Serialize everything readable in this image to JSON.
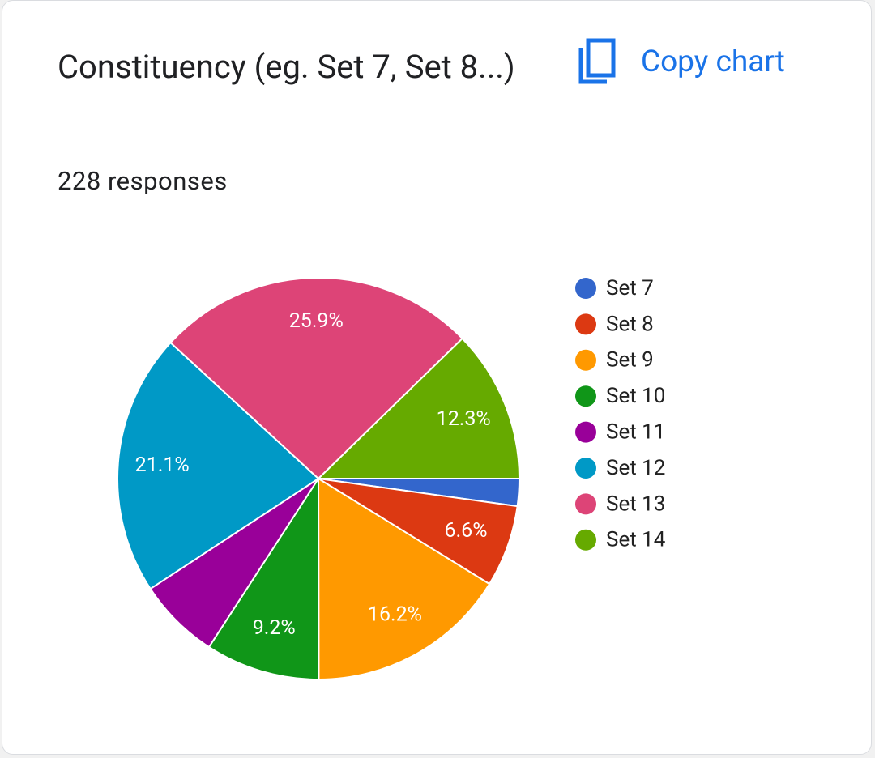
{
  "actions": {
    "copy": "Copy chart"
  },
  "chart_data": {
    "type": "pie",
    "title": "Constituency (eg. Set 7, Set 8...)",
    "subtitle": "228 responses",
    "categories": [
      "Set 7",
      "Set 8",
      "Set 9",
      "Set 10",
      "Set 11",
      "Set 12",
      "Set 13",
      "Set 14"
    ],
    "values": [
      2.2,
      6.6,
      16.2,
      9.2,
      6.6,
      21.1,
      25.9,
      12.3
    ],
    "value_labels": [
      null,
      "6.6%",
      "16.2%",
      "9.2%",
      null,
      "21.1%",
      "25.9%",
      "12.3%"
    ],
    "colors": [
      "#3366cc",
      "#dc3912",
      "#ff9900",
      "#109618",
      "#990099",
      "#0099c6",
      "#dd4477",
      "#66aa00"
    ],
    "legend": "right"
  }
}
